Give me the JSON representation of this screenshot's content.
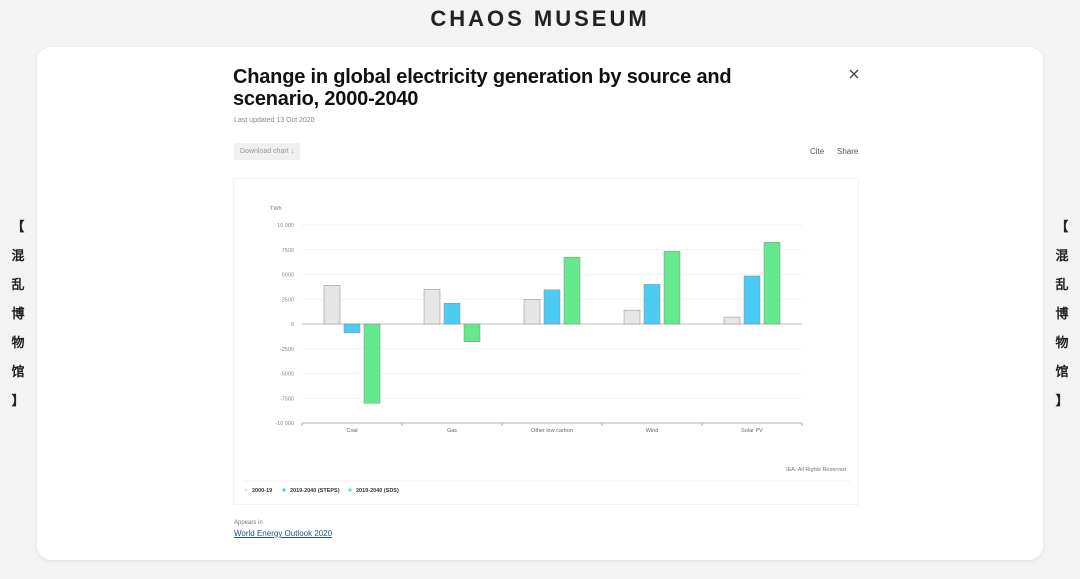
{
  "header": {
    "museum_name": "CHAOS MUSEUM"
  },
  "side_label": {
    "chars": [
      "【",
      "混",
      "乱",
      "博",
      "物",
      "馆",
      "】"
    ]
  },
  "card": {
    "title": "Change in global electricity generation by source and scenario, 2000-2040",
    "last_updated": "Last updated 13 Oct 2020",
    "download_label": "Download chart ↓",
    "cite_label": "Cite",
    "share_label": "Share",
    "appears_in_label": "Appears in",
    "appears_in_link": "World Energy Outlook 2020",
    "close_icon": "close-icon"
  },
  "chart_data": {
    "type": "bar",
    "unit_label": "TWh",
    "categories": [
      "Coal",
      "Gas",
      "Other low carbon",
      "Wind",
      "Solar PV"
    ],
    "series": [
      {
        "name": "2000-19",
        "color": "#e6e6e6",
        "values": [
          3900,
          3500,
          2500,
          1400,
          700
        ]
      },
      {
        "name": "2019-2040 (STEPS)",
        "color": "#4ccbf5",
        "values": [
          -900,
          2100,
          3450,
          4000,
          4850
        ]
      },
      {
        "name": "2019-2040 (SDS)",
        "color": "#66e88f",
        "values": [
          -8000,
          -1800,
          6750,
          7350,
          8250
        ]
      }
    ],
    "ylim": [
      -10000,
      10000
    ],
    "yticks": [
      10000,
      7500,
      5000,
      2500,
      0,
      -2500,
      -5000,
      -7500,
      -10000
    ],
    "ytick_labels": [
      "10 000",
      "7500",
      "5000",
      "2500",
      "0",
      "-2500",
      "-5000",
      "-7500",
      "-10 000"
    ],
    "grid": true,
    "legend_position": "bottom-left",
    "source_note": "IEA. All Rights Reserved"
  }
}
